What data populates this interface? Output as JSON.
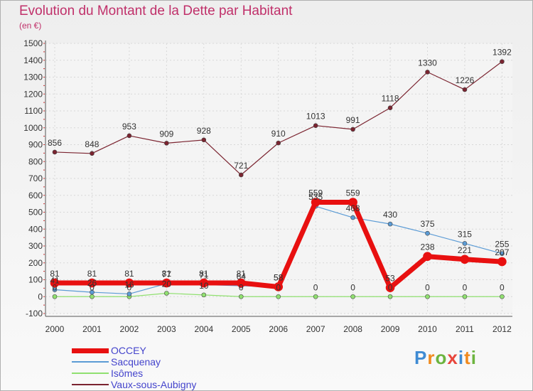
{
  "title": "Evolution du Montant de la Dette par Habitant",
  "subtitle": "(en €)",
  "brand": {
    "text": "Proxiti",
    "letters": [
      {
        "ch": "P",
        "color": "#3f8bd3"
      },
      {
        "ch": "r",
        "color": "#f08a1e"
      },
      {
        "ch": "o",
        "color": "#6cb43f"
      },
      {
        "ch": "x",
        "color": "#e8463c"
      },
      {
        "ch": "i",
        "color": "#3f8bd3"
      },
      {
        "ch": "t",
        "color": "#f08a1e"
      },
      {
        "ch": "i",
        "color": "#6cb43f"
      }
    ]
  },
  "chart_data": {
    "type": "line",
    "title": "Evolution du Montant de la Dette par Habitant",
    "ylabel": "(en €)",
    "ylim": [
      -100,
      1500
    ],
    "yticks": [
      -100,
      0,
      100,
      200,
      300,
      400,
      500,
      600,
      700,
      800,
      900,
      1000,
      1100,
      1200,
      1300,
      1400,
      1500
    ],
    "x": [
      "2000",
      "2001",
      "2002",
      "2003",
      "2004",
      "2005",
      "2006",
      "2007",
      "2008",
      "2009",
      "2010",
      "2011",
      "2012"
    ],
    "grid": true,
    "legend": "bottom-left",
    "series": [
      {
        "name": "OCCEY",
        "color": "#e81010",
        "values": [
          81,
          81,
          81,
          81,
          81,
          81,
          58,
          559,
          559,
          53,
          238,
          221,
          207
        ]
      },
      {
        "name": "Sacquenay",
        "color": "#5b9bd5",
        "values": [
          41,
          26,
          16,
          77,
          71,
          64,
          58,
          535,
          468,
          430,
          375,
          315,
          255
        ]
      },
      {
        "name": "Isômes",
        "color": "#90e070",
        "values": [
          0,
          0,
          0,
          20,
          10,
          0,
          0,
          0,
          0,
          0,
          0,
          0,
          0
        ]
      },
      {
        "name": "Vaux-sous-Aubigny",
        "color": "#7b2430",
        "values": [
          856,
          848,
          953,
          909,
          928,
          721,
          910,
          1013,
          991,
          1118,
          1330,
          1226,
          1392
        ]
      }
    ],
    "value_labels": [
      {
        "series": "Vaux-sous-Aubigny",
        "values": [
          856,
          848,
          953,
          909,
          928,
          721,
          910,
          1013,
          991,
          1118,
          1330,
          1226,
          1392
        ]
      },
      {
        "series": "OCCEY",
        "values": [
          81,
          81,
          81,
          81,
          81,
          81,
          58,
          559,
          559,
          53,
          238,
          221,
          207
        ]
      },
      {
        "series": "Sacquenay",
        "values": [
          41,
          26,
          16,
          77,
          71,
          64,
          58,
          535,
          468,
          430,
          375,
          315,
          255
        ]
      },
      {
        "series": "Isômes",
        "values": [
          0,
          0,
          0,
          20,
          10,
          0,
          0,
          0,
          0,
          0,
          0,
          0,
          0
        ]
      }
    ]
  }
}
